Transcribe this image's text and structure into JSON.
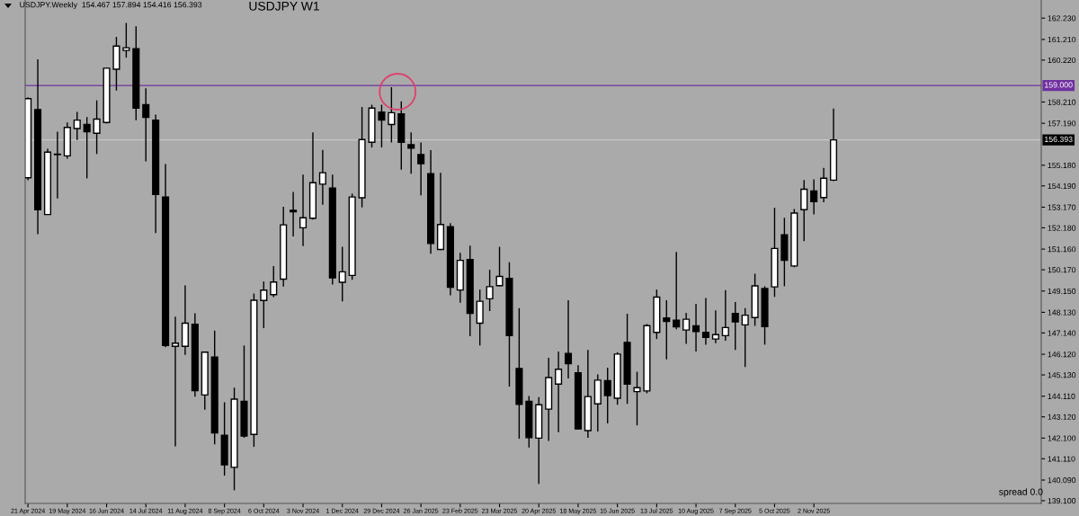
{
  "chart_data": {
    "type": "candlestick",
    "title": "USDJPY W1",
    "annotations": [
      "USDJPY.Weekly  154.467 157.894 154.416 156.393",
      "spread 0.0"
    ],
    "x": [
      "2024-04-21",
      "2024-04-28",
      "2024-05-05",
      "2024-05-12",
      "2024-05-19",
      "2024-05-26",
      "2024-06-02",
      "2024-06-09",
      "2024-06-16",
      "2024-06-23",
      "2024-06-30",
      "2024-07-07",
      "2024-07-14",
      "2024-07-21",
      "2024-07-28",
      "2024-08-04",
      "2024-08-11",
      "2024-08-18",
      "2024-08-25",
      "2024-09-01",
      "2024-09-08",
      "2024-09-15",
      "2024-09-22",
      "2024-09-29",
      "2024-10-06",
      "2024-10-13",
      "2024-10-20",
      "2024-10-27",
      "2024-11-03",
      "2024-11-10",
      "2024-11-17",
      "2024-11-24",
      "2024-12-01",
      "2024-12-08",
      "2024-12-15",
      "2024-12-22",
      "2024-12-29",
      "2025-01-05",
      "2025-01-12",
      "2025-01-19",
      "2025-01-26",
      "2025-02-02",
      "2025-02-09",
      "2025-02-16",
      "2025-02-23",
      "2025-03-02",
      "2025-03-09",
      "2025-03-16",
      "2025-03-23",
      "2025-03-30",
      "2025-04-06",
      "2025-04-13",
      "2025-04-20",
      "2025-04-27",
      "2025-05-04",
      "2025-05-11",
      "2025-05-18",
      "2025-05-25",
      "2025-06-01",
      "2025-06-08",
      "2025-06-15",
      "2025-06-22",
      "2025-06-29",
      "2025-07-06",
      "2025-07-13",
      "2025-07-20",
      "2025-07-27",
      "2025-08-03",
      "2025-08-10",
      "2025-08-17",
      "2025-08-24",
      "2025-08-31",
      "2025-09-07",
      "2025-09-14",
      "2025-09-21",
      "2025-09-28",
      "2025-10-05",
      "2025-10-12",
      "2025-10-19",
      "2025-10-26",
      "2025-11-02",
      "2025-11-09",
      "2025-11-16"
    ],
    "ohlc": [
      [
        154.58,
        158.44,
        154.46,
        158.37
      ],
      [
        157.85,
        160.26,
        151.87,
        153.05
      ],
      [
        152.82,
        155.97,
        152.8,
        155.81
      ],
      [
        155.69,
        156.79,
        153.59,
        155.69
      ],
      [
        155.63,
        157.23,
        155.5,
        156.99
      ],
      [
        156.94,
        157.73,
        156.39,
        157.34
      ],
      [
        157.13,
        157.49,
        154.55,
        156.79
      ],
      [
        156.71,
        158.29,
        155.72,
        157.39
      ],
      [
        157.23,
        159.86,
        157.18,
        159.83
      ],
      [
        159.78,
        161.33,
        158.76,
        160.89
      ],
      [
        160.68,
        162.0,
        160.34,
        160.81
      ],
      [
        160.76,
        161.84,
        157.34,
        157.92
      ],
      [
        158.08,
        158.87,
        155.37,
        157.47
      ],
      [
        157.34,
        157.61,
        151.93,
        153.78
      ],
      [
        153.66,
        155.24,
        146.46,
        146.54
      ],
      [
        146.5,
        147.92,
        141.71,
        146.65
      ],
      [
        146.5,
        149.42,
        146.09,
        147.61
      ],
      [
        147.56,
        148.08,
        144.09,
        144.38
      ],
      [
        144.17,
        146.25,
        143.46,
        146.22
      ],
      [
        145.98,
        147.25,
        141.8,
        142.35
      ],
      [
        142.24,
        143.82,
        140.3,
        140.82
      ],
      [
        140.7,
        144.52,
        139.6,
        143.97
      ],
      [
        143.86,
        146.54,
        142.12,
        142.2
      ],
      [
        142.28,
        149.03,
        141.68,
        148.71
      ],
      [
        148.7,
        149.61,
        147.37,
        149.19
      ],
      [
        148.98,
        150.35,
        148.86,
        149.58
      ],
      [
        149.72,
        153.19,
        149.37,
        152.32
      ],
      [
        152.95,
        153.9,
        151.77,
        153.02
      ],
      [
        152.18,
        154.73,
        151.3,
        152.66
      ],
      [
        152.64,
        156.76,
        152.58,
        154.34
      ],
      [
        154.27,
        155.92,
        153.29,
        154.82
      ],
      [
        154.09,
        154.73,
        149.46,
        149.78
      ],
      [
        149.57,
        151.27,
        148.65,
        150.07
      ],
      [
        149.9,
        153.82,
        149.69,
        153.66
      ],
      [
        153.62,
        157.97,
        153.16,
        156.41
      ],
      [
        156.28,
        158.08,
        156.03,
        157.92
      ],
      [
        157.73,
        158.08,
        156.03,
        157.34
      ],
      [
        157.13,
        158.92,
        156.27,
        157.7
      ],
      [
        157.64,
        158.24,
        154.97,
        156.28
      ],
      [
        156.16,
        156.76,
        154.77,
        156.0
      ],
      [
        155.69,
        156.27,
        153.74,
        155.25
      ],
      [
        154.78,
        155.9,
        150.94,
        151.43
      ],
      [
        151.14,
        154.82,
        151.11,
        152.34
      ],
      [
        152.23,
        152.4,
        148.95,
        149.33
      ],
      [
        149.2,
        150.98,
        148.59,
        150.62
      ],
      [
        150.66,
        151.33,
        146.98,
        148.08
      ],
      [
        147.61,
        149.22,
        146.54,
        148.66
      ],
      [
        148.78,
        150.17,
        148.19,
        149.36
      ],
      [
        149.41,
        151.27,
        149.38,
        149.85
      ],
      [
        149.76,
        150.53,
        144.57,
        147.01
      ],
      [
        145.44,
        148.33,
        142.07,
        143.72
      ],
      [
        143.86,
        144.12,
        141.65,
        142.12
      ],
      [
        142.1,
        144.06,
        139.91,
        143.7
      ],
      [
        143.49,
        145.95,
        141.96,
        145.0
      ],
      [
        144.69,
        146.25,
        142.38,
        145.4
      ],
      [
        146.16,
        148.71,
        144.96,
        145.67
      ],
      [
        145.23,
        145.59,
        142.51,
        142.54
      ],
      [
        142.46,
        146.33,
        142.12,
        144.09
      ],
      [
        143.74,
        145.15,
        142.42,
        144.88
      ],
      [
        144.85,
        145.48,
        142.8,
        144.14
      ],
      [
        144.01,
        146.22,
        143.7,
        146.13
      ],
      [
        146.69,
        148.06,
        143.74,
        144.69
      ],
      [
        144.33,
        145.28,
        142.71,
        144.52
      ],
      [
        144.36,
        147.57,
        144.25,
        147.49
      ],
      [
        147.17,
        149.22,
        146.85,
        148.86
      ],
      [
        147.86,
        148.71,
        145.87,
        147.69
      ],
      [
        147.75,
        151.02,
        147.32,
        147.43
      ],
      [
        147.28,
        148.11,
        146.62,
        147.8
      ],
      [
        147.48,
        148.54,
        146.25,
        147.21
      ],
      [
        147.17,
        148.82,
        146.57,
        146.93
      ],
      [
        146.85,
        148.22,
        146.65,
        147.06
      ],
      [
        147.01,
        149.19,
        146.77,
        147.4
      ],
      [
        148.08,
        148.62,
        146.33,
        147.67
      ],
      [
        147.53,
        148.33,
        145.51,
        147.99
      ],
      [
        147.88,
        149.98,
        147.48,
        149.4
      ],
      [
        149.27,
        149.38,
        146.58,
        147.45
      ],
      [
        149.35,
        153.14,
        148.87,
        151.19
      ],
      [
        151.85,
        152.66,
        149.38,
        150.62
      ],
      [
        150.35,
        153.08,
        150.29,
        152.89
      ],
      [
        153.05,
        154.47,
        151.54,
        154.03
      ],
      [
        153.95,
        154.5,
        152.82,
        153.43
      ],
      [
        153.63,
        155.05,
        153.4,
        154.56
      ],
      [
        154.467,
        157.894,
        154.416,
        156.393
      ]
    ],
    "xlim": [
      "2024-04-19",
      "2026-04-13"
    ],
    "xticks": [
      {
        "value": "2024-04-21",
        "label": "21 Apr 2024"
      },
      {
        "value": "2024-05-19",
        "label": "19 May 2024"
      },
      {
        "value": "2024-06-16",
        "label": "16 Jun 2024"
      },
      {
        "value": "2024-07-14",
        "label": "14 Jul 2024"
      },
      {
        "value": "2024-08-11",
        "label": "11 Aug 2024"
      },
      {
        "value": "2024-09-08",
        "label": "8 Sep 2024"
      },
      {
        "value": "2024-10-06",
        "label": "6 Oct 2024"
      },
      {
        "value": "2024-11-03",
        "label": "3 Nov 2024"
      },
      {
        "value": "2024-12-01",
        "label": "1 Dec 2024"
      },
      {
        "value": "2024-12-29",
        "label": "29 Dec 2024"
      },
      {
        "value": "2025-01-26",
        "label": "26 Jan 2025"
      },
      {
        "value": "2025-02-23",
        "label": "23 Feb 2025"
      },
      {
        "value": "2025-03-23",
        "label": "23 Mar 2025"
      },
      {
        "value": "2025-04-20",
        "label": "20 Apr 2025"
      },
      {
        "value": "2025-05-18",
        "label": "18 May 2025"
      },
      {
        "value": "2025-06-15",
        "label": "15 Jun 2025"
      },
      {
        "value": "2025-07-13",
        "label": "13 Jul 2025"
      },
      {
        "value": "2025-08-10",
        "label": "10 Aug 2025"
      },
      {
        "value": "2025-09-07",
        "label": "7 Sep 2025"
      },
      {
        "value": "2025-10-05",
        "label": "5 Oct 2025"
      },
      {
        "value": "2025-11-02",
        "label": "2 Nov 2025"
      }
    ],
    "ylim": [
      138.97,
      163.1
    ],
    "yticks": [
      {
        "value": 162.23,
        "label": "162.230"
      },
      {
        "value": 161.21,
        "label": "161.210"
      },
      {
        "value": 160.22,
        "label": "160.220"
      },
      {
        "value": 158.21,
        "label": "158.210"
      },
      {
        "value": 157.19,
        "label": "157.190"
      },
      {
        "value": 155.18,
        "label": "155.180"
      },
      {
        "value": 154.19,
        "label": "154.190"
      },
      {
        "value": 153.17,
        "label": "153.170"
      },
      {
        "value": 152.18,
        "label": "152.180"
      },
      {
        "value": 151.16,
        "label": "151.160"
      },
      {
        "value": 150.17,
        "label": "150.170"
      },
      {
        "value": 149.15,
        "label": "149.150"
      },
      {
        "value": 148.13,
        "label": "148.130"
      },
      {
        "value": 147.14,
        "label": "147.140"
      },
      {
        "value": 146.12,
        "label": "146.120"
      },
      {
        "value": 145.13,
        "label": "145.130"
      },
      {
        "value": 144.11,
        "label": "144.110"
      },
      {
        "value": 143.12,
        "label": "143.120"
      },
      {
        "value": 142.1,
        "label": "142.100"
      },
      {
        "value": 141.11,
        "label": "141.110"
      },
      {
        "value": 140.09,
        "label": "140.090"
      },
      {
        "value": 139.1,
        "label": "139.100"
      }
    ],
    "ref_lines": [
      {
        "axis": "y",
        "value": 159.0,
        "label": "159.000",
        "color": "#7030a0"
      },
      {
        "axis": "y",
        "value": 156.393,
        "label": "156.393",
        "color": "#c8c8c8"
      }
    ],
    "grid": false
  }
}
